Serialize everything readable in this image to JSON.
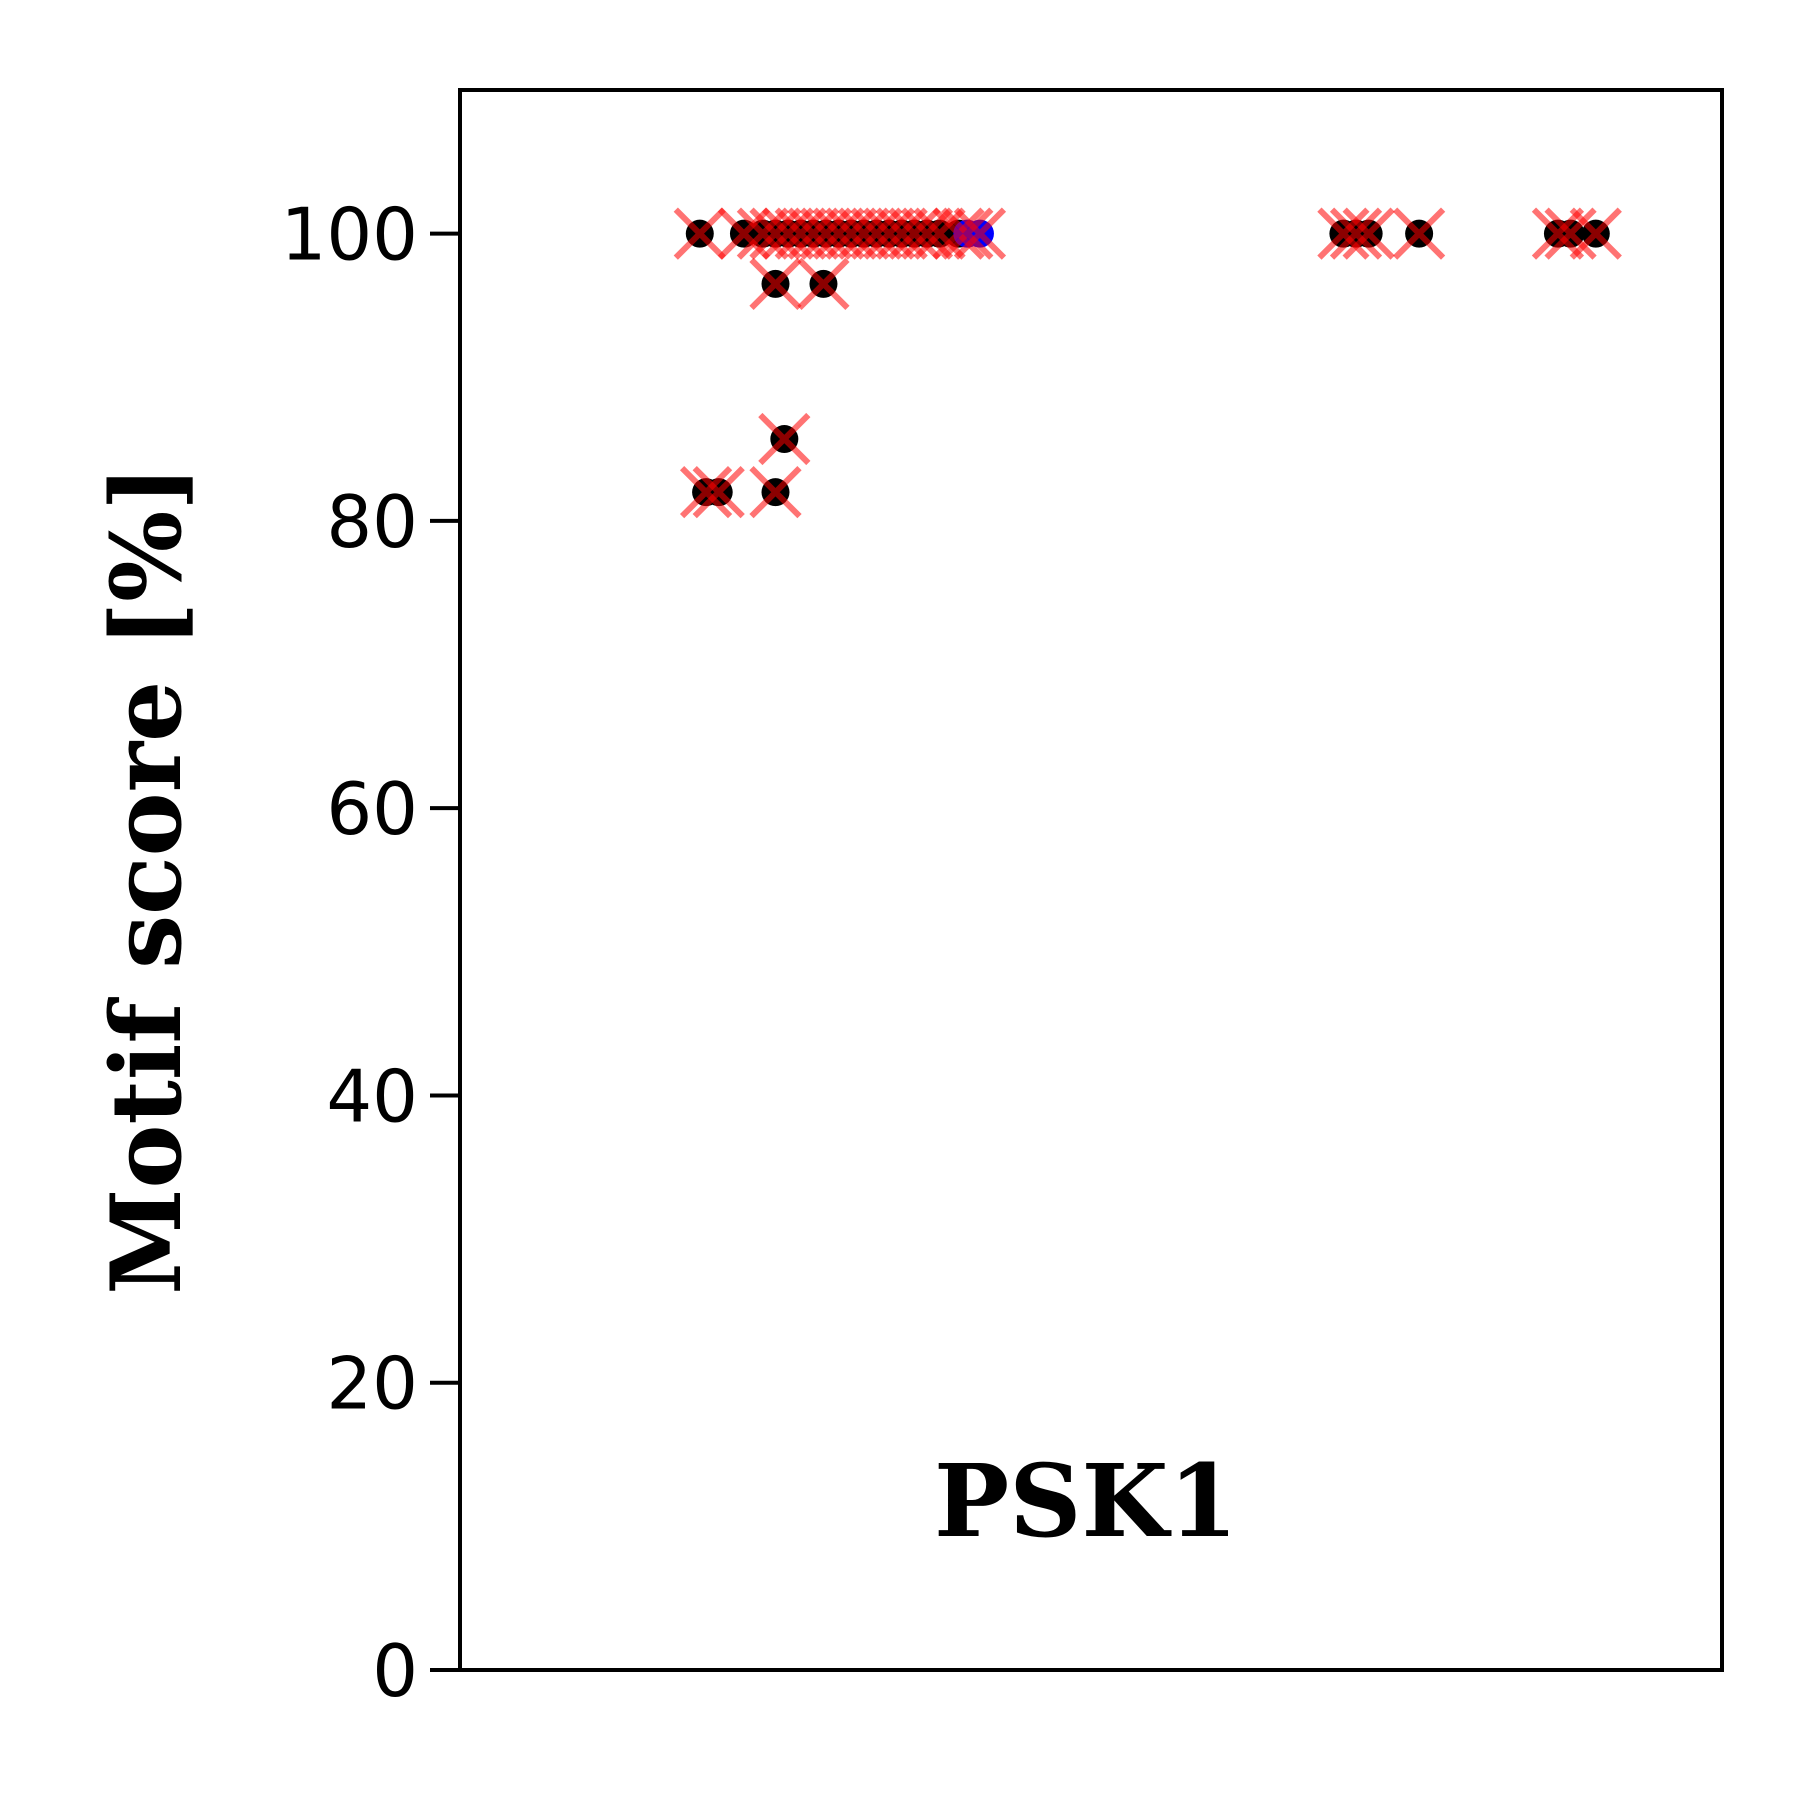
{
  "chart_data": {
    "type": "scatter",
    "title": "",
    "xlabel": "",
    "ylabel": "Motif score [%]",
    "annotation": "PSK1",
    "ylim": [
      0,
      110
    ],
    "yticks": [
      "0",
      "20",
      "40",
      "60",
      "80",
      "100"
    ],
    "x_axis_ticks": "none",
    "xlim": [
      0,
      1
    ],
    "grid": false,
    "legend": "none",
    "colors": {
      "dot": "#000000",
      "cross": "#ff0000",
      "highlight": "#0000ff",
      "frame": "#000000"
    },
    "series": [
      {
        "marker": "black-dot-with-red-x",
        "points": [
          {
            "x": 0.19,
            "y": 100
          },
          {
            "x": 0.225,
            "y": 100
          },
          {
            "x": 0.24,
            "y": 100
          },
          {
            "x": 0.25,
            "y": 100
          },
          {
            "x": 0.26,
            "y": 100
          },
          {
            "x": 0.27,
            "y": 100
          },
          {
            "x": 0.28,
            "y": 100
          },
          {
            "x": 0.29,
            "y": 100
          },
          {
            "x": 0.3,
            "y": 100
          },
          {
            "x": 0.31,
            "y": 100
          },
          {
            "x": 0.32,
            "y": 100
          },
          {
            "x": 0.33,
            "y": 100
          },
          {
            "x": 0.34,
            "y": 100
          },
          {
            "x": 0.35,
            "y": 100
          },
          {
            "x": 0.36,
            "y": 100
          },
          {
            "x": 0.37,
            "y": 100
          },
          {
            "x": 0.38,
            "y": 100
          },
          {
            "x": 0.395,
            "y": 100
          },
          {
            "x": 0.25,
            "y": 96.5
          },
          {
            "x": 0.288,
            "y": 96.5
          },
          {
            "x": 0.195,
            "y": 82
          },
          {
            "x": 0.205,
            "y": 82
          },
          {
            "x": 0.25,
            "y": 82
          },
          {
            "x": 0.257,
            "y": 85.7
          },
          {
            "x": 0.7,
            "y": 100
          },
          {
            "x": 0.71,
            "y": 100
          },
          {
            "x": 0.72,
            "y": 100
          },
          {
            "x": 0.76,
            "y": 100
          },
          {
            "x": 0.87,
            "y": 100
          },
          {
            "x": 0.88,
            "y": 100
          },
          {
            "x": 0.9,
            "y": 100
          }
        ]
      },
      {
        "marker": "blue-dot-with-red-x",
        "points": [
          {
            "x": 0.402,
            "y": 100
          },
          {
            "x": 0.412,
            "y": 100
          }
        ]
      }
    ]
  }
}
